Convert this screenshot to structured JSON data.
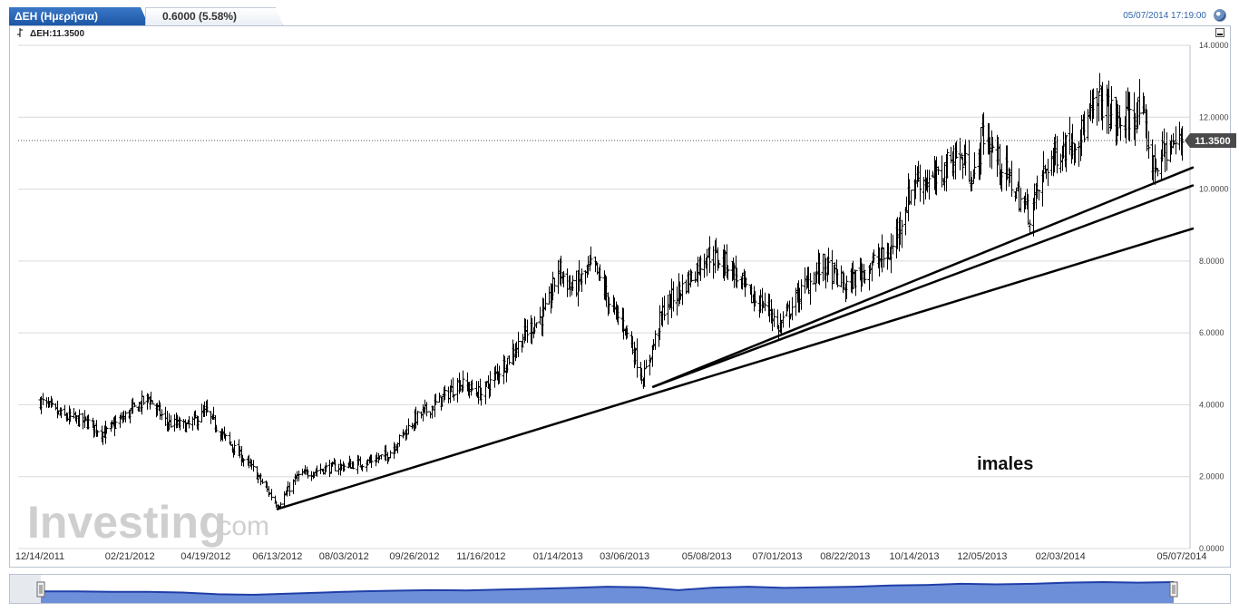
{
  "header": {
    "instrument_tab": "ΔΕΗ (Ημερήσια)",
    "change_text": "0.6000 (5.58%)",
    "datetime": "05/07/2014 17:19:00"
  },
  "indicator_label": "ΔΕΗ:11.3500",
  "watermark": {
    "brand": "Investing",
    "suffix": ".com"
  },
  "colors": {
    "accent": "#2a66b5",
    "price_bars": "#000000",
    "grid": "#d9d9d9",
    "last_price_badge": "#4a4a4a",
    "navigator_fill": "#6d8fd9",
    "navigator_line": "#1f3fa8"
  },
  "chart_data": {
    "type": "ohlc",
    "title": "",
    "xlabel": "",
    "ylabel": "",
    "ylim": [
      0,
      14
    ],
    "grid": true,
    "legend": "none",
    "y_ticks": [
      "0.0000",
      "2.0000",
      "4.0000",
      "6.0000",
      "8.0000",
      "10.0000",
      "12.0000",
      "14.0000"
    ],
    "y_tick_values": [
      0,
      2,
      4,
      6,
      8,
      10,
      12,
      14
    ],
    "x_ticks": [
      "12/14/2011",
      "02/21/2012",
      "04/19/2012",
      "06/13/2012",
      "08/03/2012",
      "09/26/2012",
      "11/16/2012",
      "01/14/2013",
      "03/06/2013",
      "05/08/2013",
      "07/01/2013",
      "08/22/2013",
      "10/14/2013",
      "12/05/2013",
      "02/03/2014",
      "05/07/2014"
    ],
    "last_price": 11.35,
    "last_price_label": "11.3500",
    "price_path": [
      [
        "12/14/2011",
        4.1
      ],
      [
        "12/30/2011",
        3.7
      ],
      [
        "01/20/2012",
        3.5
      ],
      [
        "02/01/2012",
        3.2
      ],
      [
        "02/21/2012",
        3.8
      ],
      [
        "03/06/2012",
        4.2
      ],
      [
        "03/20/2012",
        3.5
      ],
      [
        "04/05/2012",
        3.4
      ],
      [
        "04/19/2012",
        3.8
      ],
      [
        "05/05/2012",
        3.0
      ],
      [
        "05/25/2012",
        2.2
      ],
      [
        "06/13/2012",
        1.2
      ],
      [
        "06/28/2012",
        2.0
      ],
      [
        "07/15/2012",
        2.2
      ],
      [
        "08/03/2012",
        2.3
      ],
      [
        "08/20/2012",
        2.4
      ],
      [
        "09/05/2012",
        2.6
      ],
      [
        "09/26/2012",
        3.6
      ],
      [
        "10/15/2012",
        4.1
      ],
      [
        "10/30/2012",
        4.6
      ],
      [
        "11/16/2012",
        4.3
      ],
      [
        "12/05/2012",
        5.2
      ],
      [
        "12/20/2012",
        6.0
      ],
      [
        "01/05/2013",
        6.6
      ],
      [
        "01/14/2013",
        7.8
      ],
      [
        "01/25/2013",
        7.2
      ],
      [
        "02/10/2013",
        7.9
      ],
      [
        "02/25/2013",
        6.6
      ],
      [
        "03/06/2013",
        6.2
      ],
      [
        "03/20/2013",
        4.7
      ],
      [
        "04/05/2013",
        6.7
      ],
      [
        "04/20/2013",
        7.3
      ],
      [
        "05/08/2013",
        8.2
      ],
      [
        "05/25/2013",
        7.9
      ],
      [
        "06/10/2013",
        7.0
      ],
      [
        "06/25/2013",
        6.7
      ],
      [
        "07/01/2013",
        6.1
      ],
      [
        "07/20/2013",
        7.2
      ],
      [
        "08/05/2013",
        7.9
      ],
      [
        "08/22/2013",
        7.3
      ],
      [
        "09/10/2013",
        7.9
      ],
      [
        "09/25/2013",
        8.2
      ],
      [
        "10/14/2013",
        10.3
      ],
      [
        "10/30/2013",
        10.2
      ],
      [
        "11/15/2013",
        11.0
      ],
      [
        "11/30/2013",
        10.3
      ],
      [
        "12/05/2013",
        11.6
      ],
      [
        "12/20/2013",
        10.6
      ],
      [
        "01/10/2014",
        9.3
      ],
      [
        "01/25/2014",
        10.8
      ],
      [
        "02/03/2014",
        11.1
      ],
      [
        "02/20/2014",
        11.6
      ],
      [
        "03/05/2014",
        12.5
      ],
      [
        "03/20/2014",
        11.8
      ],
      [
        "04/05/2014",
        12.2
      ],
      [
        "04/15/2014",
        10.6
      ],
      [
        "04/25/2014",
        11.1
      ],
      [
        "05/07/2014",
        11.35
      ]
    ],
    "trendlines": [
      {
        "from": [
          "06/13/2012",
          1.1
        ],
        "to": [
          "05/07/2014",
          8.9
        ]
      },
      {
        "from": [
          "03/28/2013",
          4.5
        ],
        "to": [
          "05/07/2014",
          10.1
        ]
      },
      {
        "from": [
          "03/28/2013",
          4.5
        ],
        "to": [
          "05/07/2014",
          10.6
        ]
      }
    ],
    "annotations": [
      {
        "text": "imales",
        "x": "12/01/2013",
        "y": 2.2
      }
    ]
  },
  "navigator": {
    "series": [
      0.5,
      0.5,
      0.45,
      0.45,
      0.4,
      0.25,
      0.2,
      0.3,
      0.4,
      0.5,
      0.55,
      0.6,
      0.58,
      0.65,
      0.72,
      0.8,
      0.9,
      0.85,
      0.6,
      0.82,
      0.9,
      0.8,
      0.85,
      0.9,
      1.0,
      1.05,
      1.15,
      1.1,
      1.15,
      1.25,
      1.3,
      1.25,
      1.3
    ]
  }
}
